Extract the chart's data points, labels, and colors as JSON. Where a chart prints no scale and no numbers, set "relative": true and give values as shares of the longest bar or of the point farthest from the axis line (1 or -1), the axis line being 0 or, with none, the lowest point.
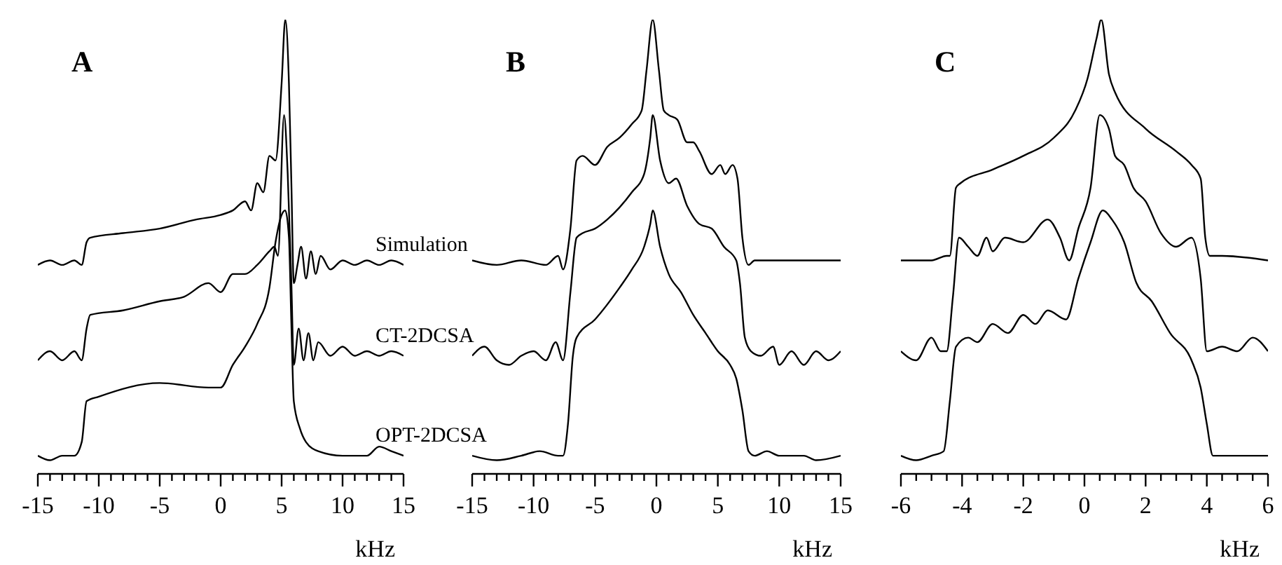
{
  "chart_data": [
    {
      "type": "line",
      "title": "A",
      "xlabel": "kHz",
      "relative": true,
      "tick_labels": "x",
      "xlim": [
        -15,
        15
      ],
      "xticks": [
        -15,
        {
          "value": -14,
          "label": null
        },
        {
          "value": -13,
          "label": null
        },
        {
          "value": -12,
          "label": null
        },
        {
          "value": -11,
          "label": null
        },
        -10,
        {
          "value": -9,
          "label": null
        },
        {
          "value": -8,
          "label": null
        },
        {
          "value": -7,
          "label": null
        },
        {
          "value": -6,
          "label": null
        },
        -5,
        {
          "value": -4,
          "label": null
        },
        {
          "value": -3,
          "label": null
        },
        {
          "value": -2,
          "label": null
        },
        {
          "value": -1,
          "label": null
        },
        0,
        {
          "value": 1,
          "label": null
        },
        {
          "value": 2,
          "label": null
        },
        {
          "value": 3,
          "label": null
        },
        {
          "value": 4,
          "label": null
        },
        5,
        {
          "value": 6,
          "label": null
        },
        {
          "value": 7,
          "label": null
        },
        {
          "value": 8,
          "label": null
        },
        {
          "value": 9,
          "label": null
        },
        10,
        {
          "value": 11,
          "label": null
        },
        {
          "value": 12,
          "label": null
        },
        {
          "value": 13,
          "label": null
        },
        {
          "value": 14,
          "label": null
        },
        15
      ],
      "series": [
        {
          "name": "Simulation",
          "color": "#000000",
          "x": [
            -15,
            -14,
            -13,
            -12,
            -11.4,
            -11,
            -10.7,
            -8,
            -5,
            -2,
            0,
            1,
            2,
            2.5,
            3,
            3.5,
            4,
            4.5,
            5,
            5.3,
            5.6,
            5.8,
            6.0,
            6.3,
            6.6,
            7,
            7.4,
            7.8,
            8.2,
            9,
            10,
            11,
            12,
            13,
            14,
            15
          ],
          "values": [
            0.46,
            0.47,
            0.46,
            0.47,
            0.46,
            0.51,
            0.52,
            0.53,
            0.54,
            0.56,
            0.57,
            0.58,
            0.6,
            0.58,
            0.64,
            0.62,
            0.7,
            0.69,
            0.86,
            1.0,
            0.86,
            0.64,
            0.42,
            0.46,
            0.5,
            0.43,
            0.49,
            0.44,
            0.48,
            0.45,
            0.47,
            0.46,
            0.47,
            0.46,
            0.47,
            0.46
          ]
        },
        {
          "name": "CT-2DCSA",
          "color": "#000000",
          "x": [
            -15,
            -14,
            -13,
            -12,
            -11.4,
            -11,
            -10.7,
            -8,
            -5,
            -3,
            -1,
            0,
            1,
            2,
            3,
            4,
            4.4,
            4.7,
            5.2,
            5.5,
            5.8,
            6.0,
            6.4,
            6.8,
            7.2,
            7.6,
            8,
            9,
            10,
            11,
            12,
            13,
            14,
            15
          ],
          "values": [
            0.25,
            0.27,
            0.25,
            0.27,
            0.25,
            0.32,
            0.35,
            0.36,
            0.38,
            0.39,
            0.42,
            0.4,
            0.44,
            0.44,
            0.46,
            0.49,
            0.5,
            0.48,
            0.79,
            0.66,
            0.42,
            0.24,
            0.32,
            0.25,
            0.31,
            0.25,
            0.29,
            0.26,
            0.28,
            0.26,
            0.27,
            0.26,
            0.27,
            0.26
          ]
        },
        {
          "name": "OPT-2DCSA",
          "color": "#000000",
          "x": [
            -15,
            -14,
            -13,
            -12,
            -11.4,
            -11,
            -10,
            -5,
            -1,
            0,
            1,
            2,
            3,
            4,
            4.5,
            5,
            5.3,
            5.6,
            5.8,
            6,
            6.5,
            7,
            8,
            10,
            12,
            13,
            14,
            15
          ],
          "values": [
            0.04,
            0.03,
            0.04,
            0.04,
            0.07,
            0.16,
            0.17,
            0.2,
            0.19,
            0.19,
            0.24,
            0.28,
            0.33,
            0.41,
            0.51,
            0.57,
            0.58,
            0.52,
            0.33,
            0.16,
            0.1,
            0.07,
            0.05,
            0.04,
            0.04,
            0.06,
            0.05,
            0.04
          ]
        }
      ]
    },
    {
      "type": "line",
      "title": "B",
      "xlabel": "kHz",
      "relative": true,
      "tick_labels": "x",
      "xlim": [
        -15,
        15
      ],
      "xticks": [
        -15,
        {
          "value": -14,
          "label": null
        },
        {
          "value": -13,
          "label": null
        },
        {
          "value": -12,
          "label": null
        },
        {
          "value": -11,
          "label": null
        },
        -10,
        {
          "value": -9,
          "label": null
        },
        {
          "value": -8,
          "label": null
        },
        {
          "value": -7,
          "label": null
        },
        {
          "value": -6,
          "label": null
        },
        -5,
        {
          "value": -4,
          "label": null
        },
        {
          "value": -3,
          "label": null
        },
        {
          "value": -2,
          "label": null
        },
        {
          "value": -1,
          "label": null
        },
        0,
        {
          "value": 1,
          "label": null
        },
        {
          "value": 2,
          "label": null
        },
        {
          "value": 3,
          "label": null
        },
        {
          "value": 4,
          "label": null
        },
        5,
        {
          "value": 6,
          "label": null
        },
        {
          "value": 7,
          "label": null
        },
        {
          "value": 8,
          "label": null
        },
        {
          "value": 9,
          "label": null
        },
        10,
        {
          "value": 11,
          "label": null
        },
        {
          "value": 12,
          "label": null
        },
        {
          "value": 13,
          "label": null
        },
        {
          "value": 14,
          "label": null
        },
        15
      ],
      "series": [
        {
          "color": "#000000",
          "x": [
            -15,
            -13,
            -11,
            -9,
            -8,
            -7.6,
            -7,
            -6.5,
            -6,
            -5,
            -4,
            -3,
            -2,
            -1.2,
            -0.8,
            -0.3,
            0.2,
            0.6,
            1,
            1.7,
            2.5,
            3,
            3.5,
            4.5,
            5.2,
            5.6,
            6.2,
            6.6,
            7,
            7.5,
            8,
            10,
            12,
            15
          ],
          "values": [
            0.47,
            0.46,
            0.47,
            0.46,
            0.48,
            0.45,
            0.54,
            0.69,
            0.7,
            0.68,
            0.72,
            0.74,
            0.77,
            0.8,
            0.89,
            1.0,
            0.89,
            0.8,
            0.79,
            0.78,
            0.73,
            0.73,
            0.71,
            0.66,
            0.68,
            0.66,
            0.68,
            0.65,
            0.52,
            0.46,
            0.47,
            0.47,
            0.47,
            0.47
          ]
        },
        {
          "color": "#000000",
          "x": [
            -15,
            -14,
            -13,
            -12,
            -11,
            -10,
            -9,
            -8.2,
            -7.6,
            -7,
            -6.5,
            -6,
            -5,
            -4,
            -2,
            -1,
            -0.5,
            -0.3,
            0.3,
            1,
            1.6,
            2.5,
            3.5,
            4.5,
            5.5,
            6.5,
            6.8,
            7.2,
            7.7,
            8.5,
            9.5,
            10,
            11,
            12,
            13,
            14,
            15
          ],
          "values": [
            0.26,
            0.28,
            0.25,
            0.24,
            0.26,
            0.27,
            0.25,
            0.29,
            0.25,
            0.4,
            0.52,
            0.53,
            0.54,
            0.56,
            0.62,
            0.66,
            0.74,
            0.79,
            0.69,
            0.64,
            0.65,
            0.59,
            0.55,
            0.54,
            0.5,
            0.47,
            0.42,
            0.3,
            0.27,
            0.26,
            0.28,
            0.24,
            0.27,
            0.24,
            0.27,
            0.25,
            0.27
          ]
        },
        {
          "color": "#000000",
          "x": [
            -15,
            -13,
            -11,
            -9.5,
            -8,
            -7.6,
            -7.2,
            -6.8,
            -6.5,
            -5,
            -3,
            -2,
            -1,
            -0.5,
            -0.3,
            0.3,
            1,
            2,
            3,
            4,
            5,
            6,
            6.5,
            7,
            7.5,
            8,
            9,
            10,
            12,
            13,
            15
          ],
          "values": [
            0.04,
            0.03,
            0.04,
            0.05,
            0.04,
            0.04,
            0.11,
            0.26,
            0.3,
            0.34,
            0.41,
            0.45,
            0.5,
            0.55,
            0.58,
            0.5,
            0.44,
            0.4,
            0.35,
            0.31,
            0.27,
            0.24,
            0.21,
            0.14,
            0.05,
            0.04,
            0.05,
            0.04,
            0.04,
            0.03,
            0.04
          ]
        }
      ]
    },
    {
      "type": "line",
      "title": "C",
      "xlabel": "kHz",
      "relative": true,
      "tick_labels": "x",
      "xlim": [
        -6,
        6
      ],
      "xticks": [
        -6,
        {
          "value": -5.5,
          "label": null
        },
        {
          "value": -5,
          "label": null
        },
        {
          "value": -4.5,
          "label": null
        },
        -4,
        {
          "value": -3.5,
          "label": null
        },
        {
          "value": -3,
          "label": null
        },
        {
          "value": -2.5,
          "label": null
        },
        -2,
        {
          "value": -1.5,
          "label": null
        },
        {
          "value": -1,
          "label": null
        },
        {
          "value": -0.5,
          "label": null
        },
        0,
        {
          "value": 0.5,
          "label": null
        },
        {
          "value": 1,
          "label": null
        },
        {
          "value": 1.5,
          "label": null
        },
        2,
        {
          "value": 2.5,
          "label": null
        },
        {
          "value": 3,
          "label": null
        },
        {
          "value": 3.5,
          "label": null
        },
        4,
        {
          "value": 4.5,
          "label": null
        },
        {
          "value": 5,
          "label": null
        },
        {
          "value": 5.5,
          "label": null
        },
        6
      ],
      "series": [
        {
          "color": "#000000",
          "x": [
            -6,
            -5,
            -4.5,
            -4.4,
            -4.2,
            -4.05,
            -3,
            -2,
            -1,
            -0.3,
            0.1,
            0.4,
            0.55,
            0.8,
            1,
            2,
            3,
            3.5,
            3.8,
            3.95,
            4.1,
            4.5,
            6
          ],
          "values": [
            0.47,
            0.47,
            0.48,
            0.48,
            0.63,
            0.64,
            0.67,
            0.7,
            0.74,
            0.8,
            0.87,
            0.96,
            1.0,
            0.88,
            0.84,
            0.76,
            0.71,
            0.68,
            0.65,
            0.52,
            0.48,
            0.48,
            0.47
          ]
        },
        {
          "color": "#000000",
          "x": [
            -6,
            -5.5,
            -5,
            -4.7,
            -4.5,
            -4.3,
            -4.1,
            -3.8,
            -3.5,
            -3.2,
            -3,
            -2.6,
            -2,
            -1.2,
            -0.8,
            -0.5,
            -0.2,
            0.2,
            0.5,
            0.8,
            1.0,
            1.3,
            1.6,
            2.0,
            2.5,
            3,
            3.5,
            3.8,
            4,
            4.5,
            5,
            5.5,
            6
          ],
          "values": [
            0.27,
            0.25,
            0.3,
            0.27,
            0.27,
            0.39,
            0.52,
            0.5,
            0.48,
            0.52,
            0.49,
            0.52,
            0.51,
            0.56,
            0.52,
            0.47,
            0.54,
            0.63,
            0.79,
            0.76,
            0.7,
            0.68,
            0.63,
            0.6,
            0.53,
            0.5,
            0.52,
            0.43,
            0.27,
            0.28,
            0.27,
            0.3,
            0.27
          ]
        },
        {
          "color": "#000000",
          "x": [
            -6,
            -5.5,
            -5,
            -4.6,
            -4.4,
            -4.2,
            -3.8,
            -3.5,
            -3,
            -2.5,
            -2,
            -1.6,
            -1.2,
            -0.6,
            -0.2,
            0.2,
            0.6,
            0.9,
            1.3,
            1.7,
            2.2,
            2.8,
            3.5,
            3.8,
            4.0,
            4.2,
            5,
            6
          ],
          "values": [
            0.04,
            0.03,
            0.04,
            0.05,
            0.16,
            0.28,
            0.3,
            0.29,
            0.33,
            0.31,
            0.35,
            0.33,
            0.36,
            0.34,
            0.43,
            0.51,
            0.58,
            0.56,
            0.51,
            0.42,
            0.38,
            0.31,
            0.25,
            0.19,
            0.11,
            0.04,
            0.04,
            0.04
          ]
        }
      ]
    }
  ]
}
